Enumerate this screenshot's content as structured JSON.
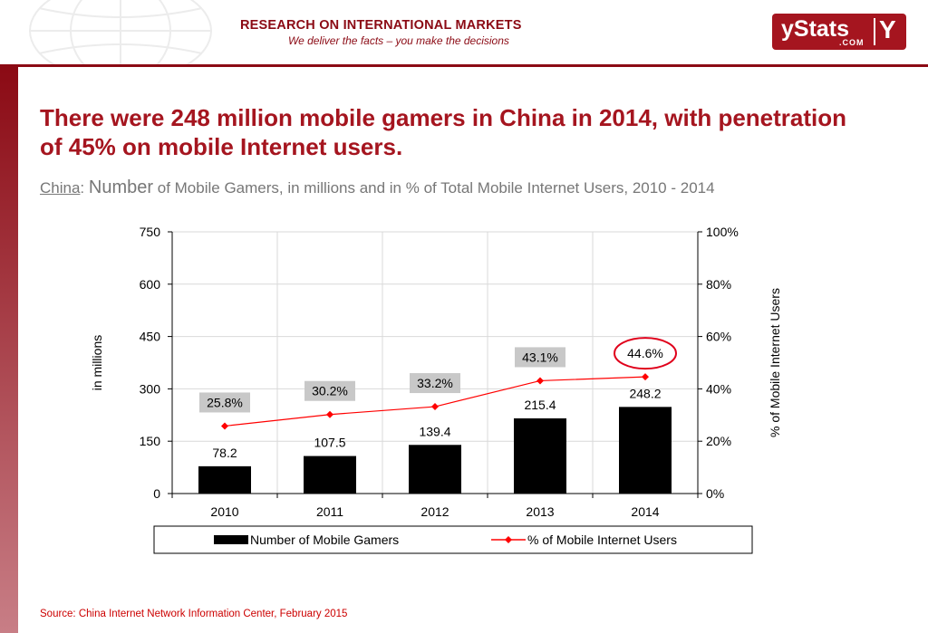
{
  "header": {
    "title": "RESEARCH ON INTERNATIONAL MARKETS",
    "subtitle": "We deliver the facts – you make the decisions"
  },
  "logo": {
    "main": "yStats",
    "domain": ".COM",
    "mark": "Y"
  },
  "slide": {
    "title": "There were 248 million mobile gamers in China in 2014, with penetration of 45% on mobile Internet users.",
    "subtitle_country": "China",
    "subtitle_sep": ": ",
    "subtitle_lead": "Number",
    "subtitle_rest": " of Mobile Gamers, in millions and in % of Total Mobile Internet Users, 2010 - 2014"
  },
  "chart_data": {
    "type": "bar",
    "categories": [
      "2010",
      "2011",
      "2012",
      "2013",
      "2014"
    ],
    "series": [
      {
        "name": "Number of Mobile Gamers",
        "type": "bar",
        "axis": "left",
        "values": [
          78.2,
          107.5,
          139.4,
          215.4,
          248.2
        ],
        "labels": [
          "78.2",
          "107.5",
          "139.4",
          "215.4",
          "248.2"
        ],
        "color": "#000000"
      },
      {
        "name": "% of Mobile Internet Users",
        "type": "line",
        "axis": "right",
        "values": [
          25.8,
          30.2,
          33.2,
          43.1,
          44.6
        ],
        "labels": [
          "25.8%",
          "30.2%",
          "33.2%",
          "43.1%",
          "44.6%"
        ],
        "color": "#ff0000"
      }
    ],
    "ylabel": "in millions",
    "y2label": "% of Mobile Internet Users",
    "ylim": [
      0,
      750
    ],
    "y2lim": [
      0,
      100
    ],
    "yticks": [
      "0",
      "150",
      "300",
      "450",
      "600",
      "750"
    ],
    "y2ticks": [
      "0%",
      "20%",
      "40%",
      "60%",
      "80%",
      "100%"
    ],
    "grid": true,
    "legend": "bottom",
    "highlight": "44.6%",
    "highlight_color": "#e0001b",
    "label_box_color": "#c8c8c8"
  },
  "source": "Source: China Internet Network Information Center, February 2015"
}
